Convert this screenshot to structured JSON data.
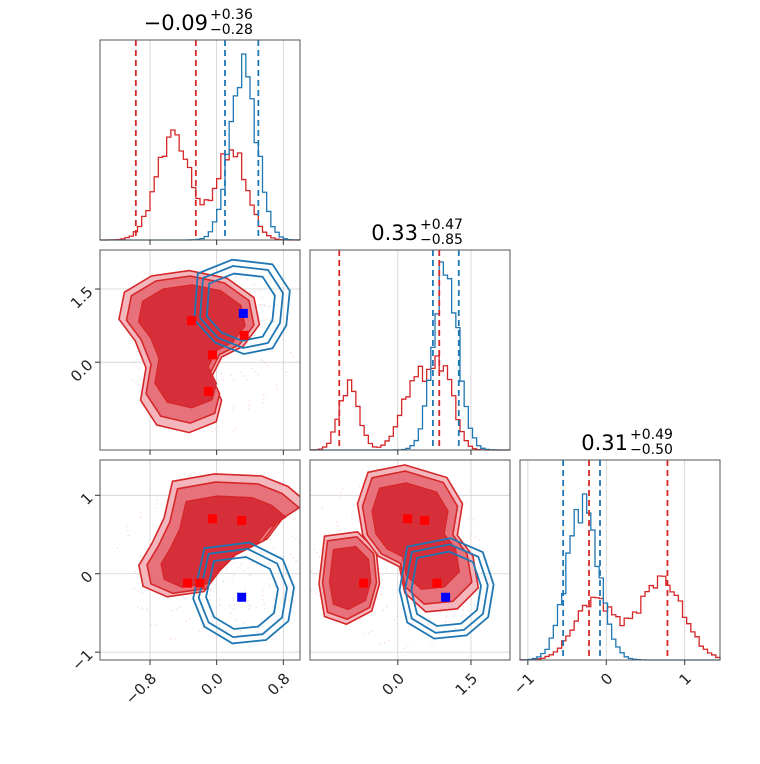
{
  "chart_data": {
    "type": "corner",
    "series": [
      {
        "name": "",
        "color": "#d62728"
      },
      {
        "name": "",
        "color": "#1f77b4"
      }
    ],
    "titles": [
      {
        "value": "−0.09",
        "plus": "+0.36",
        "minus": "−0.28"
      },
      {
        "value": "0.33",
        "plus": "+0.47",
        "minus": "−0.85"
      },
      {
        "value": "0.31",
        "plus": "+0.49",
        "minus": "−0.50"
      }
    ],
    "params": [
      {
        "range": [
          -1.4,
          1.0
        ],
        "ticks": [
          {
            "v": -0.8,
            "label": "−0.8"
          },
          {
            "v": 0.0,
            "label": "0.0"
          },
          {
            "v": 0.8,
            "label": "0.8"
          }
        ]
      },
      {
        "range": [
          -1.8,
          2.3
        ],
        "ticks": [
          {
            "v": 0.0,
            "label": "0.0"
          },
          {
            "v": 1.5,
            "label": "1.5"
          }
        ]
      },
      {
        "range": [
          -1.1,
          1.45
        ],
        "ticks": [
          {
            "v": -1,
            "label": "−1"
          },
          {
            "v": 0,
            "label": "0"
          },
          {
            "v": 1,
            "label": "1"
          }
        ]
      }
    ],
    "y_ticks_row1": [
      {
        "v": 0.0,
        "label": "0.0"
      },
      {
        "v": 1.5,
        "label": "1.5"
      }
    ],
    "quantile_lines": {
      "red": [
        [
          -0.97,
          -0.25
        ],
        [
          -1.2,
          0.85
        ],
        [
          -0.22,
          0.78
        ]
      ],
      "blue": [
        [
          0.1,
          0.5
        ],
        [
          0.72,
          1.25
        ],
        [
          -0.55,
          -0.08
        ]
      ]
    },
    "histograms": [
      {
        "red_peaks": [
          {
            "mu": -0.52,
            "sigma": 0.2,
            "w": 1.0
          },
          {
            "mu": 0.18,
            "sigma": 0.18,
            "w": 0.85
          }
        ],
        "red_max": 0.55,
        "blue_peaks": [
          {
            "mu": 0.32,
            "sigma": 0.16,
            "w": 1.0
          }
        ],
        "blue_max": 0.93
      },
      {
        "red_peaks": [
          {
            "mu": -1.0,
            "sigma": 0.2,
            "w": 0.5
          },
          {
            "mu": 0.4,
            "sigma": 0.3,
            "w": 0.55
          },
          {
            "mu": 0.95,
            "sigma": 0.22,
            "w": 0.55
          }
        ],
        "red_max": 0.47,
        "blue_peaks": [
          {
            "mu": 0.98,
            "sigma": 0.25,
            "w": 1.0
          }
        ],
        "blue_max": 0.94
      },
      {
        "red_peaks": [
          {
            "mu": -0.15,
            "sigma": 0.25,
            "w": 0.6
          },
          {
            "mu": 0.7,
            "sigma": 0.28,
            "w": 0.8
          }
        ],
        "red_max": 0.42,
        "blue_peaks": [
          {
            "mu": -0.3,
            "sigma": 0.2,
            "w": 1.0
          }
        ],
        "blue_max": 0.83
      }
    ],
    "markers": {
      "p0_p1": {
        "red": [
          [
            -0.3,
            0.85
          ],
          [
            -0.05,
            0.15
          ],
          [
            -0.1,
            -0.6
          ],
          [
            0.33,
            0.55
          ]
        ],
        "blue": [
          [
            0.32,
            1.0
          ]
        ]
      },
      "p0_p2": {
        "red": [
          [
            -0.05,
            0.7
          ],
          [
            0.3,
            0.68
          ],
          [
            -0.35,
            -0.12
          ],
          [
            -0.2,
            -0.12
          ]
        ],
        "blue": [
          [
            0.3,
            -0.3
          ]
        ]
      },
      "p1_p2": {
        "red": [
          [
            0.2,
            0.7
          ],
          [
            0.55,
            0.68
          ],
          [
            -0.7,
            -0.12
          ],
          [
            0.8,
            -0.12
          ]
        ],
        "blue": [
          [
            0.98,
            -0.3
          ]
        ]
      }
    }
  }
}
